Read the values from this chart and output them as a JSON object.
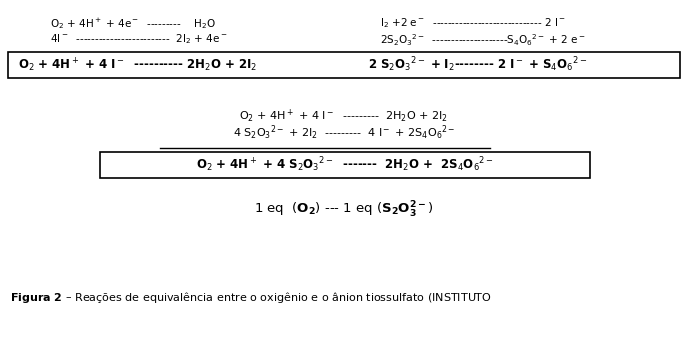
{
  "bg_color": "#ffffff",
  "fig_width": 6.88,
  "fig_height": 3.43,
  "line1_left": "O$_2$ + 4H$^+$ + 4e$^-$  ---------    H$_2$O",
  "line2_left": "4I$^-$  -------------------------  2I$_2$ + 4e$^-$",
  "line1_right": "I$_2$ +2 e$^-$  ----------------------------- 2 I$^-$",
  "line2_right": "2S$_2$O$_3$$^{2-}$  --------------------S$_4$O$_6$$^{2-}$ + 2 e$^-$",
  "box1_left": "O$_2$ + 4H$^+$ + 4 I$^-$  ---------- 2H$_2$O + 2I$_2$",
  "box1_right": "2 S$_2$O$_3$$^{2-}$ + I$_2$-------- 2 I$^-$ + S$_4$O$_6$$^{2-}$",
  "mid_line1": "O$_2$ + 4H$^+$ + 4 I$^-$  ---------  2H$_2$O + 2I$_2$",
  "mid_line2": "4 S$_2$O$_3$$^{2-}$ + 2I$_2$  ---------  4 I$^-$ + 2S$_4$O$_6$$^{2-}$",
  "box2_text": "O$_2$ + 4H$^+$ + 4 S$_2$O$_3$$^{2-}$  -------  2H$_2$O +  2S$_4$O$_6$$^{2-}$",
  "eq_line": "1 eq  ($\\mathbf{O_2}$) --- 1 eq ($\\mathbf{S_2O_3^{2-}}$)",
  "caption": "$\\mathbf{Figura\\ 2}$ – Reações de equivalência entre o oxigênio e o ânion tiossulfato (INSTITUTO",
  "font_size_small": 7.5,
  "font_size_box1": 8.5,
  "font_size_mid": 8,
  "font_size_box2": 8.5,
  "font_size_eq": 9.5,
  "font_size_caption": 8
}
